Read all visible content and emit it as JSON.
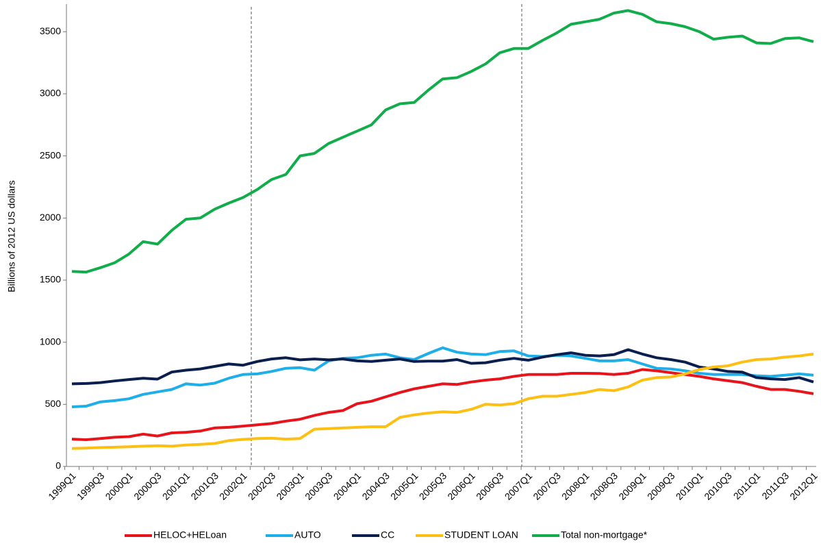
{
  "chart_data": {
    "type": "line",
    "y_label": "Billions of 2012 US dollars",
    "categories": [
      "1999Q1",
      null,
      "1999Q3",
      null,
      "2000Q1",
      null,
      "2000Q3",
      null,
      "2001Q1",
      null,
      "2001Q3",
      null,
      "2002Q1",
      null,
      "2002Q3",
      null,
      "2003Q1",
      null,
      "2003Q3",
      null,
      "2004Q1",
      null,
      "2004Q3",
      null,
      "2005Q1",
      null,
      "2005Q3",
      null,
      "2006Q1",
      null,
      "2006Q3",
      null,
      "2007Q1",
      null,
      "2007Q3",
      null,
      "2008Q1",
      null,
      "2008Q3",
      null,
      "2009Q1",
      null,
      "2009Q3",
      null,
      "2010Q1",
      null,
      "2010Q3",
      null,
      "2011Q1",
      null,
      "2011Q3",
      null,
      "2012Q1"
    ],
    "series": [
      {
        "name": "HELOC+HELoan",
        "color": "#e8141b",
        "values": [
          220,
          215,
          225,
          235,
          240,
          260,
          245,
          270,
          275,
          285,
          310,
          315,
          325,
          335,
          345,
          365,
          380,
          410,
          435,
          450,
          505,
          525,
          560,
          595,
          625,
          645,
          665,
          660,
          680,
          695,
          705,
          725,
          740,
          740,
          740,
          750,
          750,
          748,
          740,
          750,
          780,
          770,
          755,
          740,
          725,
          705,
          690,
          675,
          645,
          620,
          620,
          605,
          585
        ]
      },
      {
        "name": "AUTO",
        "color": "#1eaee8",
        "values": [
          480,
          485,
          520,
          530,
          545,
          580,
          600,
          620,
          665,
          655,
          670,
          710,
          740,
          745,
          765,
          790,
          795,
          775,
          850,
          870,
          875,
          895,
          905,
          875,
          860,
          910,
          955,
          920,
          905,
          900,
          925,
          930,
          890,
          885,
          895,
          890,
          870,
          850,
          850,
          860,
          825,
          790,
          785,
          770,
          750,
          740,
          740,
          740,
          730,
          725,
          735,
          745,
          735
        ]
      },
      {
        "name": "CC",
        "color": "#0b1f4f",
        "values": [
          665,
          668,
          675,
          688,
          700,
          710,
          703,
          760,
          775,
          785,
          805,
          825,
          815,
          845,
          865,
          875,
          858,
          865,
          858,
          865,
          850,
          845,
          855,
          865,
          845,
          848,
          848,
          860,
          830,
          835,
          855,
          870,
          855,
          880,
          900,
          915,
          895,
          890,
          900,
          940,
          905,
          875,
          860,
          840,
          800,
          785,
          765,
          760,
          715,
          705,
          700,
          715,
          680
        ]
      },
      {
        "name": "STUDENT LOAN",
        "color": "#fcbf12",
        "values": [
          145,
          148,
          152,
          155,
          158,
          163,
          167,
          163,
          172,
          178,
          185,
          208,
          218,
          225,
          228,
          220,
          225,
          300,
          305,
          310,
          315,
          320,
          320,
          395,
          415,
          430,
          440,
          435,
          460,
          500,
          495,
          505,
          545,
          565,
          565,
          580,
          595,
          620,
          610,
          640,
          695,
          715,
          720,
          745,
          780,
          800,
          810,
          840,
          860,
          865,
          880,
          890,
          905
        ]
      },
      {
        "name": "Total non-mortgage*",
        "color": "#12ad4b",
        "values": [
          1570,
          1565,
          1600,
          1640,
          1710,
          1810,
          1790,
          1900,
          1990,
          2000,
          2070,
          2120,
          2165,
          2230,
          2310,
          2350,
          2500,
          2520,
          2600,
          2650,
          2700,
          2750,
          2870,
          2920,
          2930,
          3030,
          3120,
          3130,
          3180,
          3240,
          3330,
          3365,
          3365,
          3430,
          3490,
          3560,
          3580,
          3600,
          3650,
          3670,
          3640,
          3580,
          3565,
          3540,
          3500,
          3440,
          3455,
          3465,
          3410,
          3405,
          3445,
          3450,
          3420
        ]
      }
    ],
    "ylim": [
      0,
      3700
    ],
    "yticks": [
      0,
      500,
      1000,
      1500,
      2000,
      2500,
      3000,
      3500
    ],
    "legend": "bottom"
  }
}
